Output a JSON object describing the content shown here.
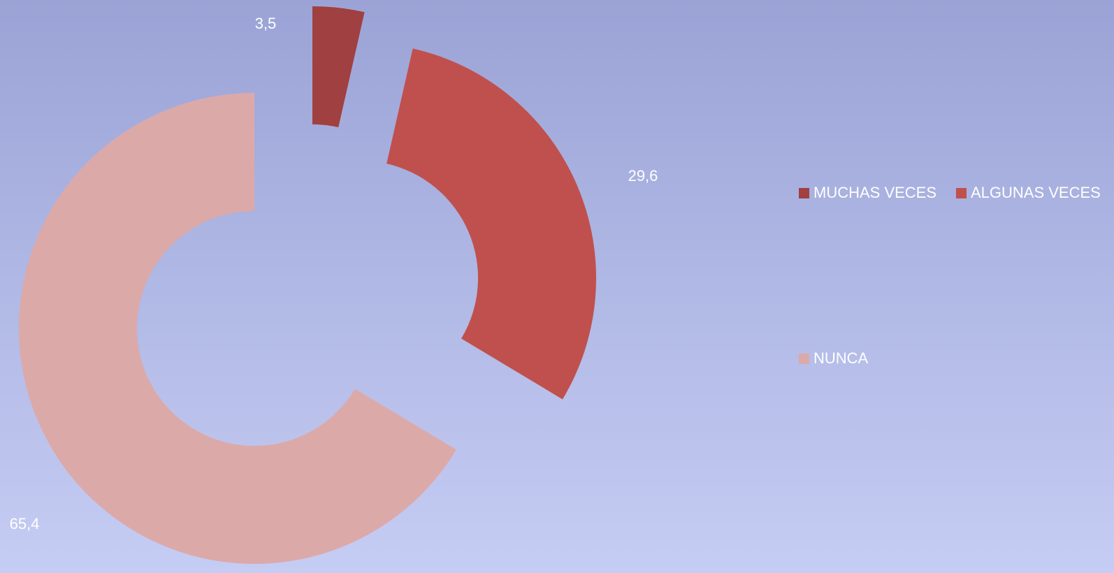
{
  "chart_data": {
    "type": "donut",
    "categories": [
      "MUCHAS VECES",
      "ALGUNAS VECES",
      "NUNCA"
    ],
    "values": [
      3.5,
      29.6,
      65.4
    ],
    "value_labels": [
      "3,5",
      "29,6",
      "65,4"
    ],
    "colors": [
      "#a04040",
      "#c0504d",
      "#dca9a9"
    ],
    "legend": "right"
  }
}
